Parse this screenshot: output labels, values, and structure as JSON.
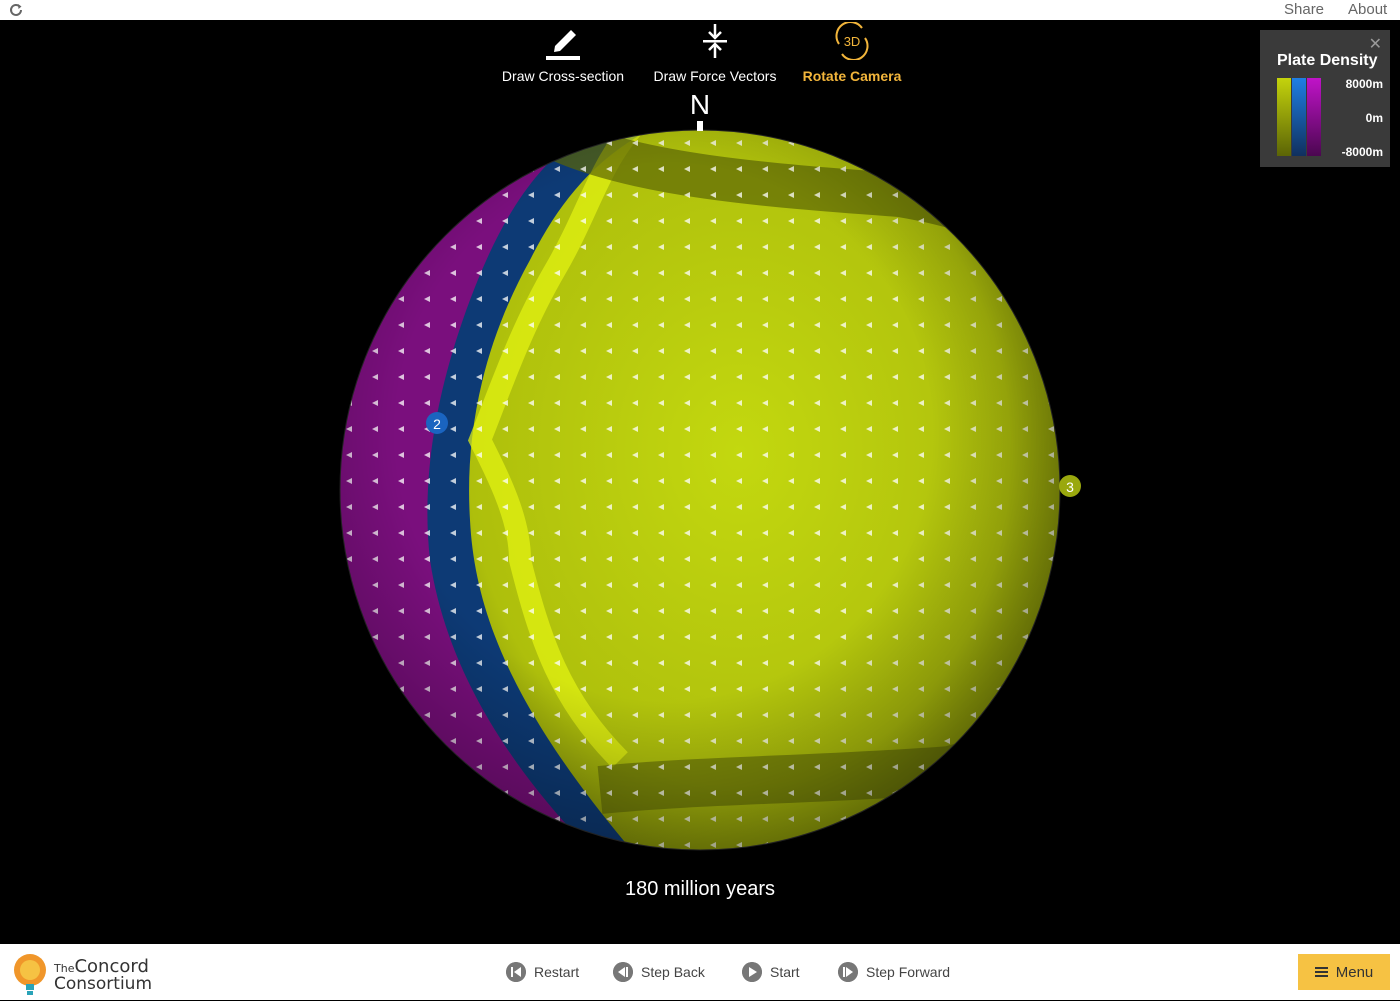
{
  "topbar": {
    "share_label": "Share",
    "about_label": "About"
  },
  "toolbar": [
    {
      "id": "cross",
      "label": "Draw Cross-section",
      "icon": "pencil-icon"
    },
    {
      "id": "force",
      "label": "Draw Force Vectors",
      "icon": "force-arrows-icon"
    },
    {
      "id": "camera",
      "label": "Rotate Camera",
      "icon": "rotate-3d-icon",
      "icon_text": "3D",
      "active": true
    }
  ],
  "globe": {
    "north_label": "N",
    "plate_markers": [
      {
        "label": "2",
        "color": "#1a64c0"
      },
      {
        "label": "3",
        "color": "#9aa80e"
      }
    ],
    "colors": {
      "plate1": "#b8cc10",
      "plate2": "#0d3a75",
      "plate3": "#7a0f7d"
    }
  },
  "legend": {
    "title": "Plate Density",
    "high_label": "8000m",
    "mid_label": "0m",
    "low_label": "-8000m",
    "close": "✕"
  },
  "time_label": "180 million years",
  "footer": {
    "logo_line1": "The",
    "logo_line1b": "Concord",
    "logo_line2": "Consortium",
    "controls": {
      "restart": "Restart",
      "step_back": "Step Back",
      "start": "Start",
      "step_forward": "Step Forward"
    },
    "menu_label": "Menu"
  },
  "colors": {
    "accent": "#f2b53b",
    "menu": "#f6c243"
  }
}
